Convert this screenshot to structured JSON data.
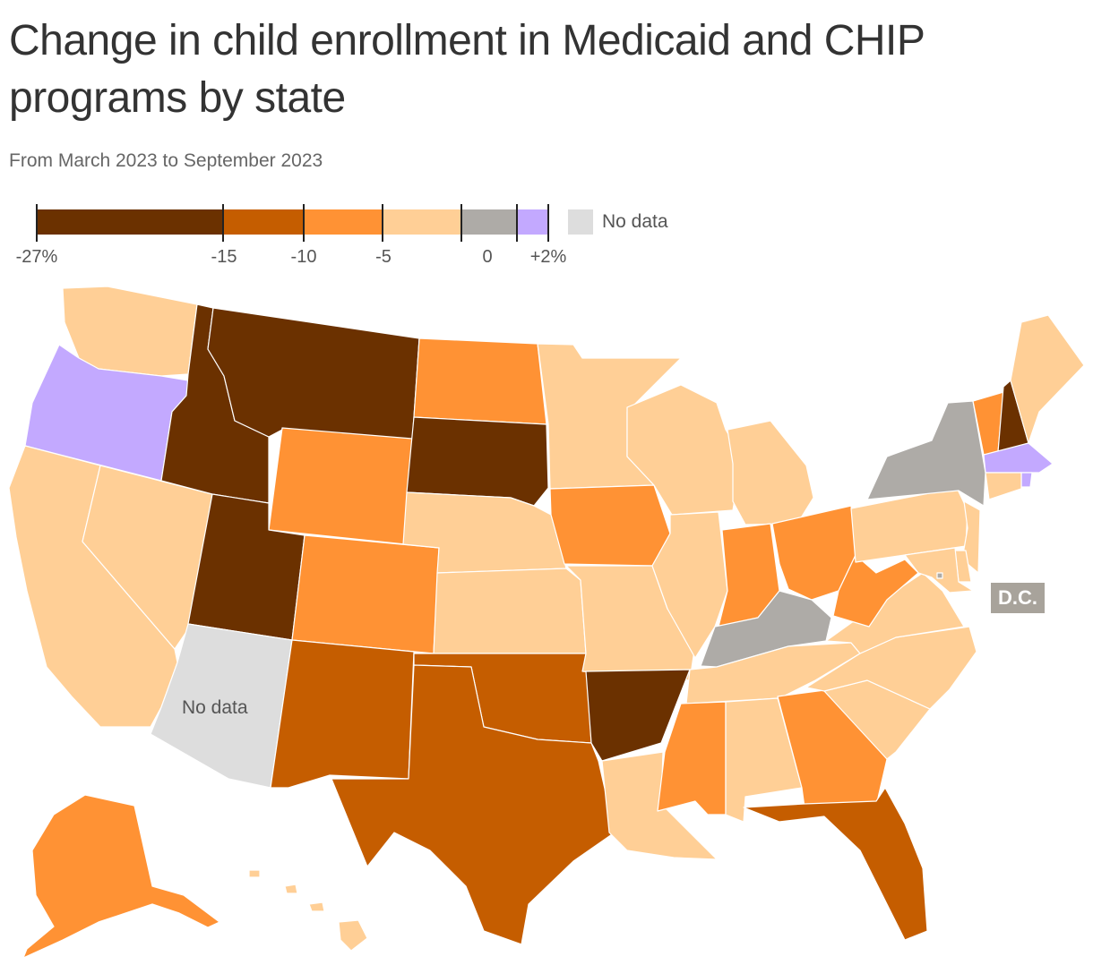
{
  "title": "Change in child enrollment in Medicaid and CHIP programs by state",
  "subtitle": "From March 2023 to September 2023",
  "legend": {
    "bins": [
      {
        "min": -27,
        "max": -15,
        "color": "#6b3100"
      },
      {
        "min": -15,
        "max": -10,
        "color": "#c55d00"
      },
      {
        "min": -10,
        "max": -5,
        "color": "#ff9234"
      },
      {
        "min": -5,
        "max": -1,
        "color": "#ffcf96"
      },
      {
        "min": -1,
        "max": 0,
        "color": "#aeaba7"
      },
      {
        "min": 0,
        "max": 2,
        "color": "#c3a9ff"
      }
    ],
    "labels": [
      "-27%",
      "-15",
      "-10",
      "-5",
      "0",
      "+2%"
    ],
    "nodata_label": "No data",
    "nodata_color": "#dddddd"
  },
  "annotations": {
    "dc": "D.C.",
    "arizona": "No data"
  },
  "colors": {
    "q1": "#6b3100",
    "q2": "#c55d00",
    "q3": "#ff9234",
    "q4": "#ffcf96",
    "q5": "#aeaba7",
    "q6": "#c3a9ff",
    "nodata": "#dddddd"
  },
  "states": [
    {
      "name": "Washington",
      "bin": "q4"
    },
    {
      "name": "Oregon",
      "bin": "q6"
    },
    {
      "name": "California",
      "bin": "q4"
    },
    {
      "name": "Nevada",
      "bin": "q4"
    },
    {
      "name": "Idaho",
      "bin": "q1"
    },
    {
      "name": "Montana",
      "bin": "q1"
    },
    {
      "name": "Wyoming",
      "bin": "q3"
    },
    {
      "name": "Utah",
      "bin": "q1"
    },
    {
      "name": "Arizona",
      "bin": "nodata"
    },
    {
      "name": "Colorado",
      "bin": "q3"
    },
    {
      "name": "New Mexico",
      "bin": "q2"
    },
    {
      "name": "North Dakota",
      "bin": "q3"
    },
    {
      "name": "South Dakota",
      "bin": "q1"
    },
    {
      "name": "Nebraska",
      "bin": "q4"
    },
    {
      "name": "Kansas",
      "bin": "q4"
    },
    {
      "name": "Oklahoma",
      "bin": "q2"
    },
    {
      "name": "Texas",
      "bin": "q2"
    },
    {
      "name": "Minnesota",
      "bin": "q4"
    },
    {
      "name": "Iowa",
      "bin": "q3"
    },
    {
      "name": "Missouri",
      "bin": "q4"
    },
    {
      "name": "Arkansas",
      "bin": "q1"
    },
    {
      "name": "Louisiana",
      "bin": "q4"
    },
    {
      "name": "Wisconsin",
      "bin": "q4"
    },
    {
      "name": "Illinois",
      "bin": "q4"
    },
    {
      "name": "Michigan",
      "bin": "q4"
    },
    {
      "name": "Indiana",
      "bin": "q3"
    },
    {
      "name": "Ohio",
      "bin": "q3"
    },
    {
      "name": "Kentucky",
      "bin": "q5"
    },
    {
      "name": "Tennessee",
      "bin": "q4"
    },
    {
      "name": "Mississippi",
      "bin": "q3"
    },
    {
      "name": "Alabama",
      "bin": "q4"
    },
    {
      "name": "Georgia",
      "bin": "q3"
    },
    {
      "name": "Florida",
      "bin": "q2"
    },
    {
      "name": "South Carolina",
      "bin": "q4"
    },
    {
      "name": "North Carolina",
      "bin": "q4"
    },
    {
      "name": "Virginia",
      "bin": "q4"
    },
    {
      "name": "West Virginia",
      "bin": "q3"
    },
    {
      "name": "Pennsylvania",
      "bin": "q4"
    },
    {
      "name": "New York",
      "bin": "q5"
    },
    {
      "name": "Vermont",
      "bin": "q3"
    },
    {
      "name": "New Hampshire",
      "bin": "q1"
    },
    {
      "name": "Maine",
      "bin": "q4"
    },
    {
      "name": "Massachusetts",
      "bin": "q6"
    },
    {
      "name": "Rhode Island",
      "bin": "q6"
    },
    {
      "name": "Connecticut",
      "bin": "q4"
    },
    {
      "name": "New Jersey",
      "bin": "q4"
    },
    {
      "name": "Delaware",
      "bin": "q4"
    },
    {
      "name": "Maryland",
      "bin": "q4"
    },
    {
      "name": "District of Columbia",
      "bin": "q5"
    },
    {
      "name": "Alaska",
      "bin": "q3"
    },
    {
      "name": "Hawaii",
      "bin": "q4"
    }
  ]
}
